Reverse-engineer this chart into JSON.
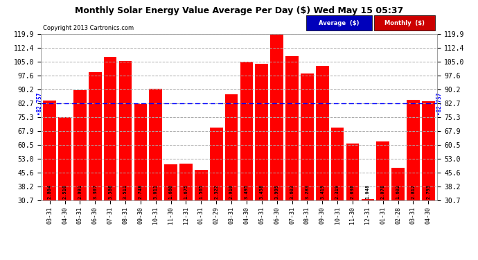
{
  "title": "Monthly Solar Energy Value Average Per Day ($) Wed May 15 05:37",
  "copyright": "Copyright 2013 Cartronics.com",
  "categories": [
    "03-31",
    "04-30",
    "05-31",
    "06-30",
    "07-31",
    "08-31",
    "09-30",
    "10-31",
    "11-30",
    "12-31",
    "01-31",
    "02-29",
    "03-31",
    "04-30",
    "05-31",
    "06-30",
    "07-31",
    "08-31",
    "09-30",
    "10-31",
    "11-30",
    "12-31",
    "01-31",
    "02-28",
    "03-31",
    "04-30"
  ],
  "values": [
    2.804,
    2.51,
    2.991,
    3.307,
    3.586,
    3.511,
    2.748,
    3.011,
    1.66,
    1.675,
    1.565,
    2.322,
    2.91,
    3.495,
    3.458,
    3.995,
    3.603,
    3.283,
    3.419,
    2.319,
    2.036,
    1.048,
    2.078,
    1.602,
    2.812,
    2.793
  ],
  "bar_color": "#ff0000",
  "average_value": 82.757,
  "average_color": "#0000ff",
  "yticks": [
    30.7,
    38.2,
    45.6,
    53.0,
    60.5,
    67.9,
    75.3,
    82.7,
    90.2,
    97.6,
    105.0,
    112.4,
    119.9
  ],
  "ylim_min": 30.7,
  "ylim_max": 119.9,
  "scale_factor": 30.0,
  "background_color": "#ffffff",
  "plot_bg_color": "#ffffff",
  "grid_color": "#aaaaaa",
  "legend_avg_bg": "#0000bb",
  "legend_monthly_bg": "#cc0000",
  "legend_avg_label": "Average  ($)",
  "legend_monthly_label": "Monthly  ($)"
}
